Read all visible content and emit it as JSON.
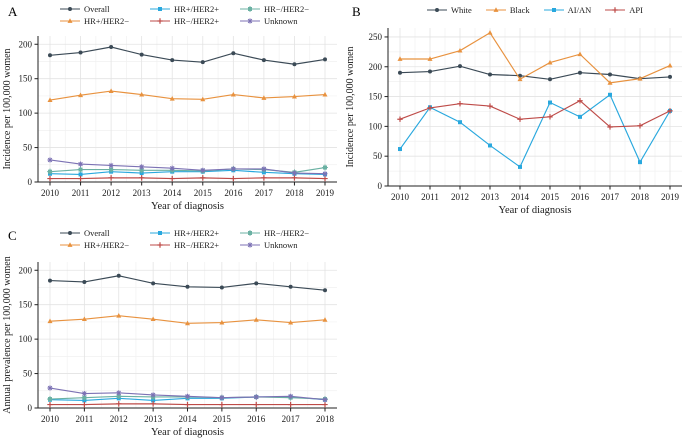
{
  "chart_data": [
    {
      "panel_label": "A",
      "type": "line",
      "title": "",
      "xlabel": "Year of diagnosis",
      "ylabel": "Incidence per 100,000 women",
      "x": [
        "2010",
        "2011",
        "2012",
        "2013",
        "2014",
        "2015",
        "2016",
        "2017",
        "2018",
        "2019"
      ],
      "y_ticks": [
        0,
        50,
        100,
        150,
        200
      ],
      "ylim": [
        0,
        212
      ],
      "grid": true,
      "legend_position": "top",
      "legend_rows": [
        [
          "Overall",
          "HR+/HER2+",
          "HR−/HER2−"
        ],
        [
          "HR+/HER2−",
          "HR−/HER2+",
          "Unknown"
        ]
      ],
      "series": [
        {
          "name": "Overall",
          "color": "#3B4A56",
          "marker": "circle",
          "values": [
            184,
            188,
            196,
            185,
            177,
            174,
            187,
            177,
            171,
            178
          ]
        },
        {
          "name": "HR+/HER2−",
          "color": "#E8923F",
          "marker": "triangle",
          "values": [
            119,
            126,
            132,
            127,
            121,
            120,
            127,
            122,
            124,
            127
          ]
        },
        {
          "name": "HR+/HER2+",
          "color": "#29A8DE",
          "marker": "square",
          "values": [
            12,
            11,
            15,
            13,
            15,
            15,
            17,
            14,
            12,
            11
          ]
        },
        {
          "name": "HR−/HER2+",
          "color": "#BE4B48",
          "marker": "plus",
          "values": [
            5,
            5,
            6,
            6,
            5,
            6,
            5,
            6,
            6,
            5
          ]
        },
        {
          "name": "HR−/HER2−",
          "color": "#6BB1A3",
          "marker": "square-cross",
          "values": [
            15,
            18,
            18,
            17,
            17,
            16,
            19,
            18,
            14,
            21
          ]
        },
        {
          "name": "Unknown",
          "color": "#7C72B4",
          "marker": "asterisk",
          "values": [
            32,
            26,
            24,
            22,
            20,
            17,
            19,
            19,
            13,
            12
          ]
        }
      ]
    },
    {
      "panel_label": "B",
      "type": "line",
      "title": "",
      "xlabel": "Year of diagnosis",
      "ylabel": "Incidence per 100,000 women",
      "x": [
        "2010",
        "2011",
        "2012",
        "2013",
        "2014",
        "2015",
        "2016",
        "2017",
        "2018",
        "2019"
      ],
      "y_ticks": [
        0,
        50,
        100,
        150,
        200,
        250
      ],
      "ylim": [
        0,
        265
      ],
      "grid": true,
      "legend_position": "top",
      "legend_rows": [
        [
          "White",
          "Black",
          "AI/AN",
          "API"
        ]
      ],
      "series": [
        {
          "name": "White",
          "color": "#3B4A56",
          "marker": "circle",
          "values": [
            190,
            192,
            201,
            187,
            185,
            179,
            190,
            187,
            180,
            183
          ]
        },
        {
          "name": "Black",
          "color": "#E8923F",
          "marker": "triangle",
          "values": [
            213,
            213,
            227,
            257,
            179,
            207,
            221,
            173,
            180,
            202
          ]
        },
        {
          "name": "AI/AN",
          "color": "#29A8DE",
          "marker": "square",
          "values": [
            62,
            132,
            107,
            68,
            32,
            140,
            116,
            153,
            40,
            126
          ]
        },
        {
          "name": "API",
          "color": "#BE4B48",
          "marker": "plus",
          "values": [
            112,
            131,
            138,
            134,
            112,
            116,
            143,
            99,
            101,
            126
          ]
        }
      ]
    },
    {
      "panel_label": "C",
      "type": "line",
      "title": "",
      "xlabel": "Year of diagnosis",
      "ylabel": "Annual prevalence per 100,000 women",
      "x": [
        "2010",
        "2011",
        "2012",
        "2013",
        "2014",
        "2015",
        "2016",
        "2017",
        "2018"
      ],
      "y_ticks": [
        0,
        50,
        100,
        150,
        200
      ],
      "ylim": [
        0,
        212
      ],
      "grid": true,
      "legend_position": "top",
      "legend_rows": [
        [
          "Overall",
          "HR+/HER2+",
          "HR−/HER2−"
        ],
        [
          "HR+/HER2−",
          "HR−/HER2+",
          "Unknown"
        ]
      ],
      "series": [
        {
          "name": "Overall",
          "color": "#3B4A56",
          "marker": "circle",
          "values": [
            185,
            183,
            192,
            181,
            176,
            175,
            181,
            176,
            171
          ]
        },
        {
          "name": "HR+/HER2−",
          "color": "#E8923F",
          "marker": "triangle",
          "values": [
            126,
            129,
            134,
            129,
            123,
            124,
            128,
            124,
            128
          ]
        },
        {
          "name": "HR+/HER2+",
          "color": "#29A8DE",
          "marker": "square",
          "values": [
            12,
            11,
            14,
            11,
            14,
            14,
            16,
            16,
            12
          ]
        },
        {
          "name": "HR−/HER2+",
          "color": "#BE4B48",
          "marker": "plus",
          "values": [
            5,
            5,
            6,
            6,
            5,
            5,
            5,
            5,
            5
          ]
        },
        {
          "name": "HR−/HER2−",
          "color": "#6BB1A3",
          "marker": "square-cross",
          "values": [
            13,
            15,
            17,
            16,
            16,
            15,
            16,
            15,
            13
          ]
        },
        {
          "name": "Unknown",
          "color": "#7C72B4",
          "marker": "asterisk",
          "values": [
            29,
            21,
            22,
            19,
            17,
            15,
            16,
            17,
            12
          ]
        }
      ]
    }
  ],
  "style": {
    "grid_major_color": "#E3E3E3",
    "grid_minor_color": "#F1F1F1",
    "axis_color": "#222222",
    "background": "#FFFFFF"
  }
}
